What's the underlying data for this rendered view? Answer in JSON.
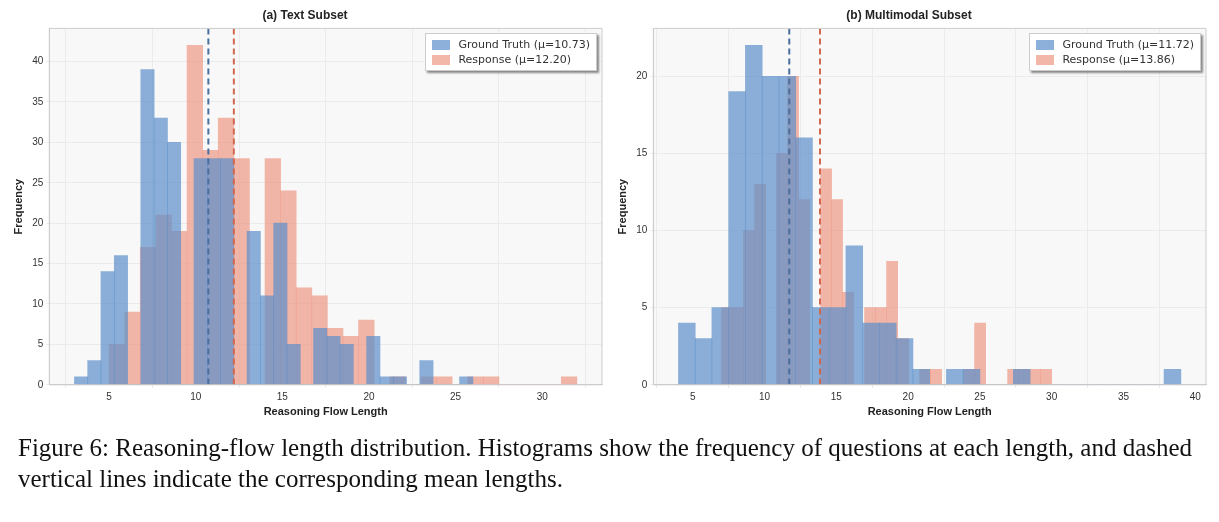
{
  "chart_data": [
    {
      "type": "histogram",
      "title": "(a) Text Subset",
      "xlabel": "Reasoning Flow Length",
      "ylabel": "Frequency",
      "xlim": [
        1.55,
        33.45
      ],
      "xticks": [
        5,
        10,
        15,
        20,
        25,
        30
      ],
      "ylim": [
        0,
        44.1
      ],
      "yticks": [
        0,
        5,
        10,
        15,
        20,
        25,
        30,
        35,
        40
      ],
      "grid": true,
      "legend": "top right",
      "bins": [
        3,
        3.77,
        4.53,
        5.3,
        6.07,
        6.83,
        7.6,
        8.37,
        9.13,
        9.9,
        10.67,
        11.43,
        12.2,
        12.97,
        13.73,
        14.5,
        15.27,
        16.03,
        16.8,
        17.57,
        18.33,
        19.1,
        19.87,
        20.63,
        21.4,
        22.17,
        22.93,
        23.7,
        24.47,
        25.23,
        26
      ],
      "series": [
        {
          "name": "Ground Truth (μ=10.73)",
          "color": "#5b8fc9",
          "values": [
            1,
            3,
            14,
            16,
            0,
            39,
            33,
            30,
            0,
            28,
            28,
            28,
            0,
            19,
            11,
            20,
            5,
            0,
            7,
            6,
            5,
            0,
            6,
            1,
            1,
            0,
            3,
            0,
            0,
            1
          ]
        },
        {
          "name": "Response (μ=12.20)",
          "color": "#ee9985",
          "bins": [
            5,
            5.9,
            6.8,
            7.7,
            8.6,
            9.5,
            10.4,
            11.3,
            12.2,
            13.1,
            14,
            14.9,
            15.8,
            16.7,
            17.6,
            18.5,
            19.4,
            20.3,
            21.2,
            22.1,
            23,
            23.9,
            24.8,
            25.7,
            26.6,
            27.5,
            28.4,
            29.3,
            30.2,
            31.1,
            32
          ],
          "values": [
            5,
            9,
            17,
            21,
            19,
            42,
            29,
            33,
            28,
            0,
            28,
            24,
            12,
            11,
            7,
            6,
            8,
            0,
            1,
            0,
            1,
            1,
            0,
            1,
            1,
            0,
            0,
            0,
            0,
            1
          ]
        }
      ],
      "ref_lines": [
        {
          "axis": "x",
          "value": 10.73,
          "color": "#4a6f9e",
          "line_style": "dashed"
        },
        {
          "axis": "x",
          "value": 12.2,
          "color": "#d0694f",
          "line_style": "dashed"
        }
      ],
      "annotations": [
        "Figure 6: Reasoning-flow length distribution. Histograms show the frequency of questions at each length, and dashed vertical lines indicate the corresponding mean lengths."
      ]
    },
    {
      "type": "histogram",
      "title": "(b) Multimodal Subset",
      "xlabel": "Reasoning Flow Length",
      "ylabel": "Frequency",
      "xlim": [
        2.25,
        40.75
      ],
      "xticks": [
        5,
        10,
        15,
        20,
        25,
        30,
        35,
        40
      ],
      "ylim": [
        0,
        23.1
      ],
      "yticks": [
        0,
        5,
        10,
        15,
        20
      ],
      "grid": true,
      "legend": "top right",
      "bins": [
        4,
        5.17,
        6.33,
        7.5,
        8.67,
        9.83,
        11,
        12.17,
        13.33,
        14.5,
        15.67,
        16.83,
        18,
        19.17,
        20.33,
        21.5,
        22.67,
        23.83,
        25,
        26.17,
        27.33,
        28.5,
        29.67,
        30.83,
        32,
        33.17,
        34.33,
        35.5,
        36.67,
        37.83,
        39
      ],
      "series": [
        {
          "name": "Ground Truth (μ=11.72)",
          "color": "#5b8fc9",
          "values": [
            4,
            3,
            5,
            19,
            22,
            20,
            20,
            16,
            5,
            5,
            9,
            4,
            4,
            3,
            1,
            0,
            1,
            1,
            0,
            0,
            1,
            0,
            0,
            0,
            0,
            0,
            0,
            0,
            0,
            1
          ]
        },
        {
          "name": "Response (μ=13.86)",
          "color": "#ee9985",
          "bins": [
            7,
            7.77,
            8.53,
            9.3,
            10.07,
            10.83,
            11.6,
            12.37,
            13.13,
            13.9,
            14.67,
            15.43,
            16.2,
            16.97,
            17.73,
            18.5,
            19.27,
            20.03,
            20.8,
            21.57,
            22.33,
            23.1,
            23.87,
            24.63,
            25.4,
            26.17,
            26.93,
            27.7,
            28.47,
            29.23,
            30
          ],
          "values": [
            5,
            5,
            10,
            13,
            0,
            15,
            20,
            12,
            0,
            14,
            12,
            6,
            0,
            5,
            5,
            8,
            3,
            0,
            1,
            1,
            0,
            0,
            1,
            4,
            0,
            0,
            1,
            1,
            1,
            1
          ]
        }
      ],
      "ref_lines": [
        {
          "axis": "x",
          "value": 11.72,
          "color": "#4a6f9e",
          "line_style": "dashed"
        },
        {
          "axis": "x",
          "value": 13.86,
          "color": "#d0694f",
          "line_style": "dashed"
        }
      ]
    }
  ]
}
